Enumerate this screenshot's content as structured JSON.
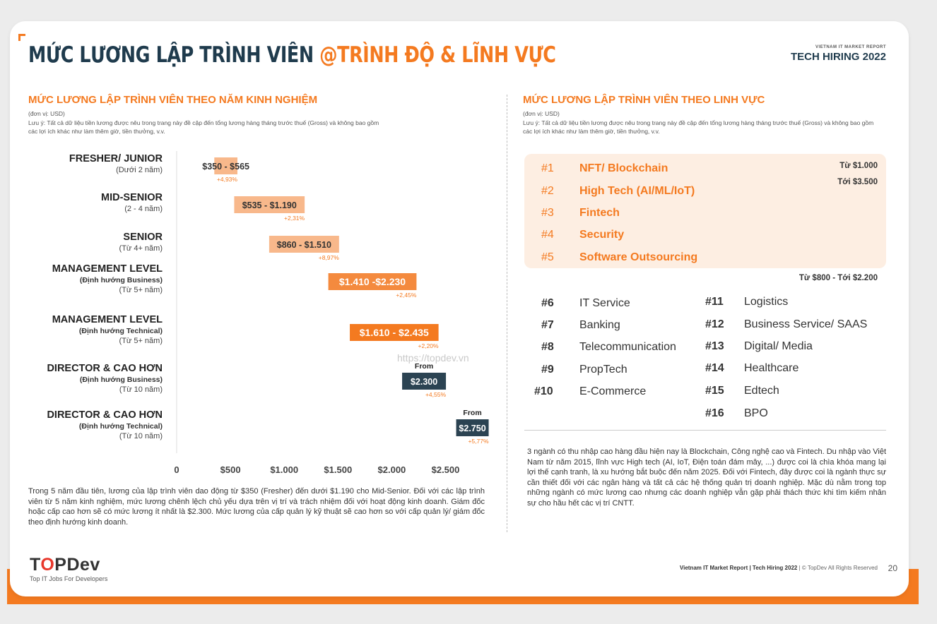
{
  "header": {
    "title_dark": "MỨC LƯƠNG LẬP TRÌNH VIÊN ",
    "title_orange": "@TRÌNH ĐỘ & LĨNH VỰC",
    "report_small": "VIETNAM IT MARKET REPORT",
    "report_large": "TECH HIRING 2022"
  },
  "left": {
    "section_title": "MỨC LƯƠNG LẬP TRÌNH VIÊN THEO NĂM KINH NGHIỆM",
    "unit": "(đơn vị: USD)",
    "note": "Lưu ý: Tất cả dữ liệu tiền lương được nêu trong trang này đề cập đến tổng lương hàng tháng trước thuế (Gross) và không bao gồm các lợi ích khác như làm thêm giờ, tiền thưởng, v.v.",
    "paragraph": "Trong 5 năm đầu tiên, lương của lập trình viên dao động từ $350 (Fresher) đến dưới $1.190 cho Mid-Senior. Đối với các lập trình viên từ 5 năm kinh nghiệm, mức lương chênh lệch chủ yếu dựa trên vị trí và trách nhiệm đối với hoạt động kinh doanh. Giám đốc hoặc cấp cao hơn sẽ có mức lương ít nhất là $2.300. Mức lương của cấp quản lý kỹ thuật sẽ cao hơn so với cấp quản lý/ giám đốc theo định hướng kinh doanh."
  },
  "chart_data": {
    "type": "bar",
    "orientation": "horizontal-range",
    "xlim": [
      0,
      2800
    ],
    "x_ticks": [
      0,
      500,
      1000,
      1500,
      2000,
      2500
    ],
    "x_tick_labels": [
      "0",
      "$500",
      "$1.000",
      "$1.500",
      "$2.000",
      "$2.500"
    ],
    "watermark": "https://topdev.vn",
    "categories": [
      {
        "title": "FRESHER/ JUNIOR",
        "sub1": "",
        "sub2": "(Dưới 2 năm)",
        "low": 350,
        "high": 565,
        "label": "$350 - $565",
        "growth": "+4,93%",
        "color": "#f8b88b",
        "text_color": "#333333",
        "prefix": ""
      },
      {
        "title": "MID-SENIOR",
        "sub1": "",
        "sub2": "(2 - 4 năm)",
        "low": 535,
        "high": 1190,
        "label": "$535 - $1.190",
        "growth": "+2,31%",
        "color": "#f8b88b",
        "text_color": "#333333",
        "prefix": ""
      },
      {
        "title": "SENIOR",
        "sub1": "",
        "sub2": "(Từ 4+ năm)",
        "low": 860,
        "high": 1510,
        "label": "$860 - $1.510",
        "growth": "+8,97%",
        "color": "#f8b88b",
        "text_color": "#333333",
        "prefix": ""
      },
      {
        "title": "MANAGEMENT LEVEL",
        "sub1": "(Định hướng Business)",
        "sub2": "(Từ 5+ năm)",
        "low": 1410,
        "high": 2230,
        "label": "$1.410 -$2.230",
        "growth": "+2,45%",
        "color": "#f48a3e",
        "text_color": "#ffffff",
        "prefix": ""
      },
      {
        "title": "MANAGEMENT LEVEL",
        "sub1": "(Định hướng Technical)",
        "sub2": "(Từ 5+ năm)",
        "low": 1610,
        "high": 2435,
        "label": "$1.610 - $2.435",
        "growth": "+2,20%",
        "color": "#f47a20",
        "text_color": "#ffffff",
        "prefix": ""
      },
      {
        "title": "DIRECTOR & CAO HƠN",
        "sub1": "(Định hướng Business)",
        "sub2": "(Từ 10 năm)",
        "low": 2300,
        "high": null,
        "label": "$2.300",
        "growth": "+4,55%",
        "color": "#2b4352",
        "text_color": "#ffffff",
        "prefix": "From"
      },
      {
        "title": "DIRECTOR & CAO HƠN",
        "sub1": "(Định hướng Technical)",
        "sub2": "(Từ 10 năm)",
        "low": 2750,
        "high": null,
        "label": "$2.750",
        "growth": "+5,77%",
        "color": "#2b4352",
        "text_color": "#ffffff",
        "prefix": "From"
      }
    ]
  },
  "right": {
    "section_title": "MỨC LƯƠNG LẬP TRÌNH VIÊN THEO LINH VỰC",
    "unit": "(đơn vị: USD)",
    "note": "Lưu ý: Tất cả dữ liệu tiền lương được nêu trong trang này đề cập đến tổng lương hàng tháng trước thuế (Gross) và không bao gồm các lợi ích khác như làm thêm giờ, tiền thưởng, v.v.",
    "top_fields": [
      {
        "rank": "#1",
        "name": "NFT/ Blockchain"
      },
      {
        "rank": "#2",
        "name": "High Tech (AI/ML/IoT)"
      },
      {
        "rank": "#3",
        "name": "Fintech"
      },
      {
        "rank": "#4",
        "name": "Security"
      },
      {
        "rank": "#5",
        "name": "Software Outsourcing"
      }
    ],
    "top_range_from": "Từ $1.000",
    "top_range_to": "Tới $3.500",
    "other_range": "Từ $800 - Tới $2.200",
    "fields_col1": [
      {
        "rank": "#6",
        "name": "IT Service"
      },
      {
        "rank": "#7",
        "name": "Banking"
      },
      {
        "rank": "#8",
        "name": "Telecommunication"
      },
      {
        "rank": "#9",
        "name": "PropTech"
      },
      {
        "rank": "#10",
        "name": "E-Commerce"
      }
    ],
    "fields_col2": [
      {
        "rank": "#11",
        "name": "Logistics"
      },
      {
        "rank": "#12",
        "name": "Business Service/ SAAS"
      },
      {
        "rank": "#13",
        "name": "Digital/ Media"
      },
      {
        "rank": "#14",
        "name": "Healthcare"
      },
      {
        "rank": "#15",
        "name": "Edtech"
      },
      {
        "rank": "#16",
        "name": "BPO"
      }
    ],
    "paragraph": "3 ngành có thu nhập cao hàng đầu hiện nay là Blockchain, Công nghệ cao và Fintech. Du nhập vào Việt Nam từ năm 2015, lĩnh vực High tech (AI, IoT, Điện toán đám mây, ...) được coi là chìa khóa mang lại lợi thế cạnh tranh, là xu hướng bắt buộc đến năm 2025. Đối với Fintech, đây được coi là ngành thực sự cần thiết đối với các ngân hàng và tất cả các hệ thống quản trị doanh nghiệp. Mặc dù nằm trong top những ngành có mức lương cao nhưng các doanh nghiệp vẫn gặp phải thách thức khi tìm kiếm nhân sự cho hầu hết các vị trí CNTT."
  },
  "footer": {
    "logo_t": "T",
    "logo_o": "O",
    "logo_rest": "PDev",
    "tagline": "Top IT Jobs For Developers",
    "report_bold": "Vietnam IT Market Report | Tech Hiring 2022",
    "report_rest": " | © TopDev All Rights Reserved",
    "page": "20"
  }
}
